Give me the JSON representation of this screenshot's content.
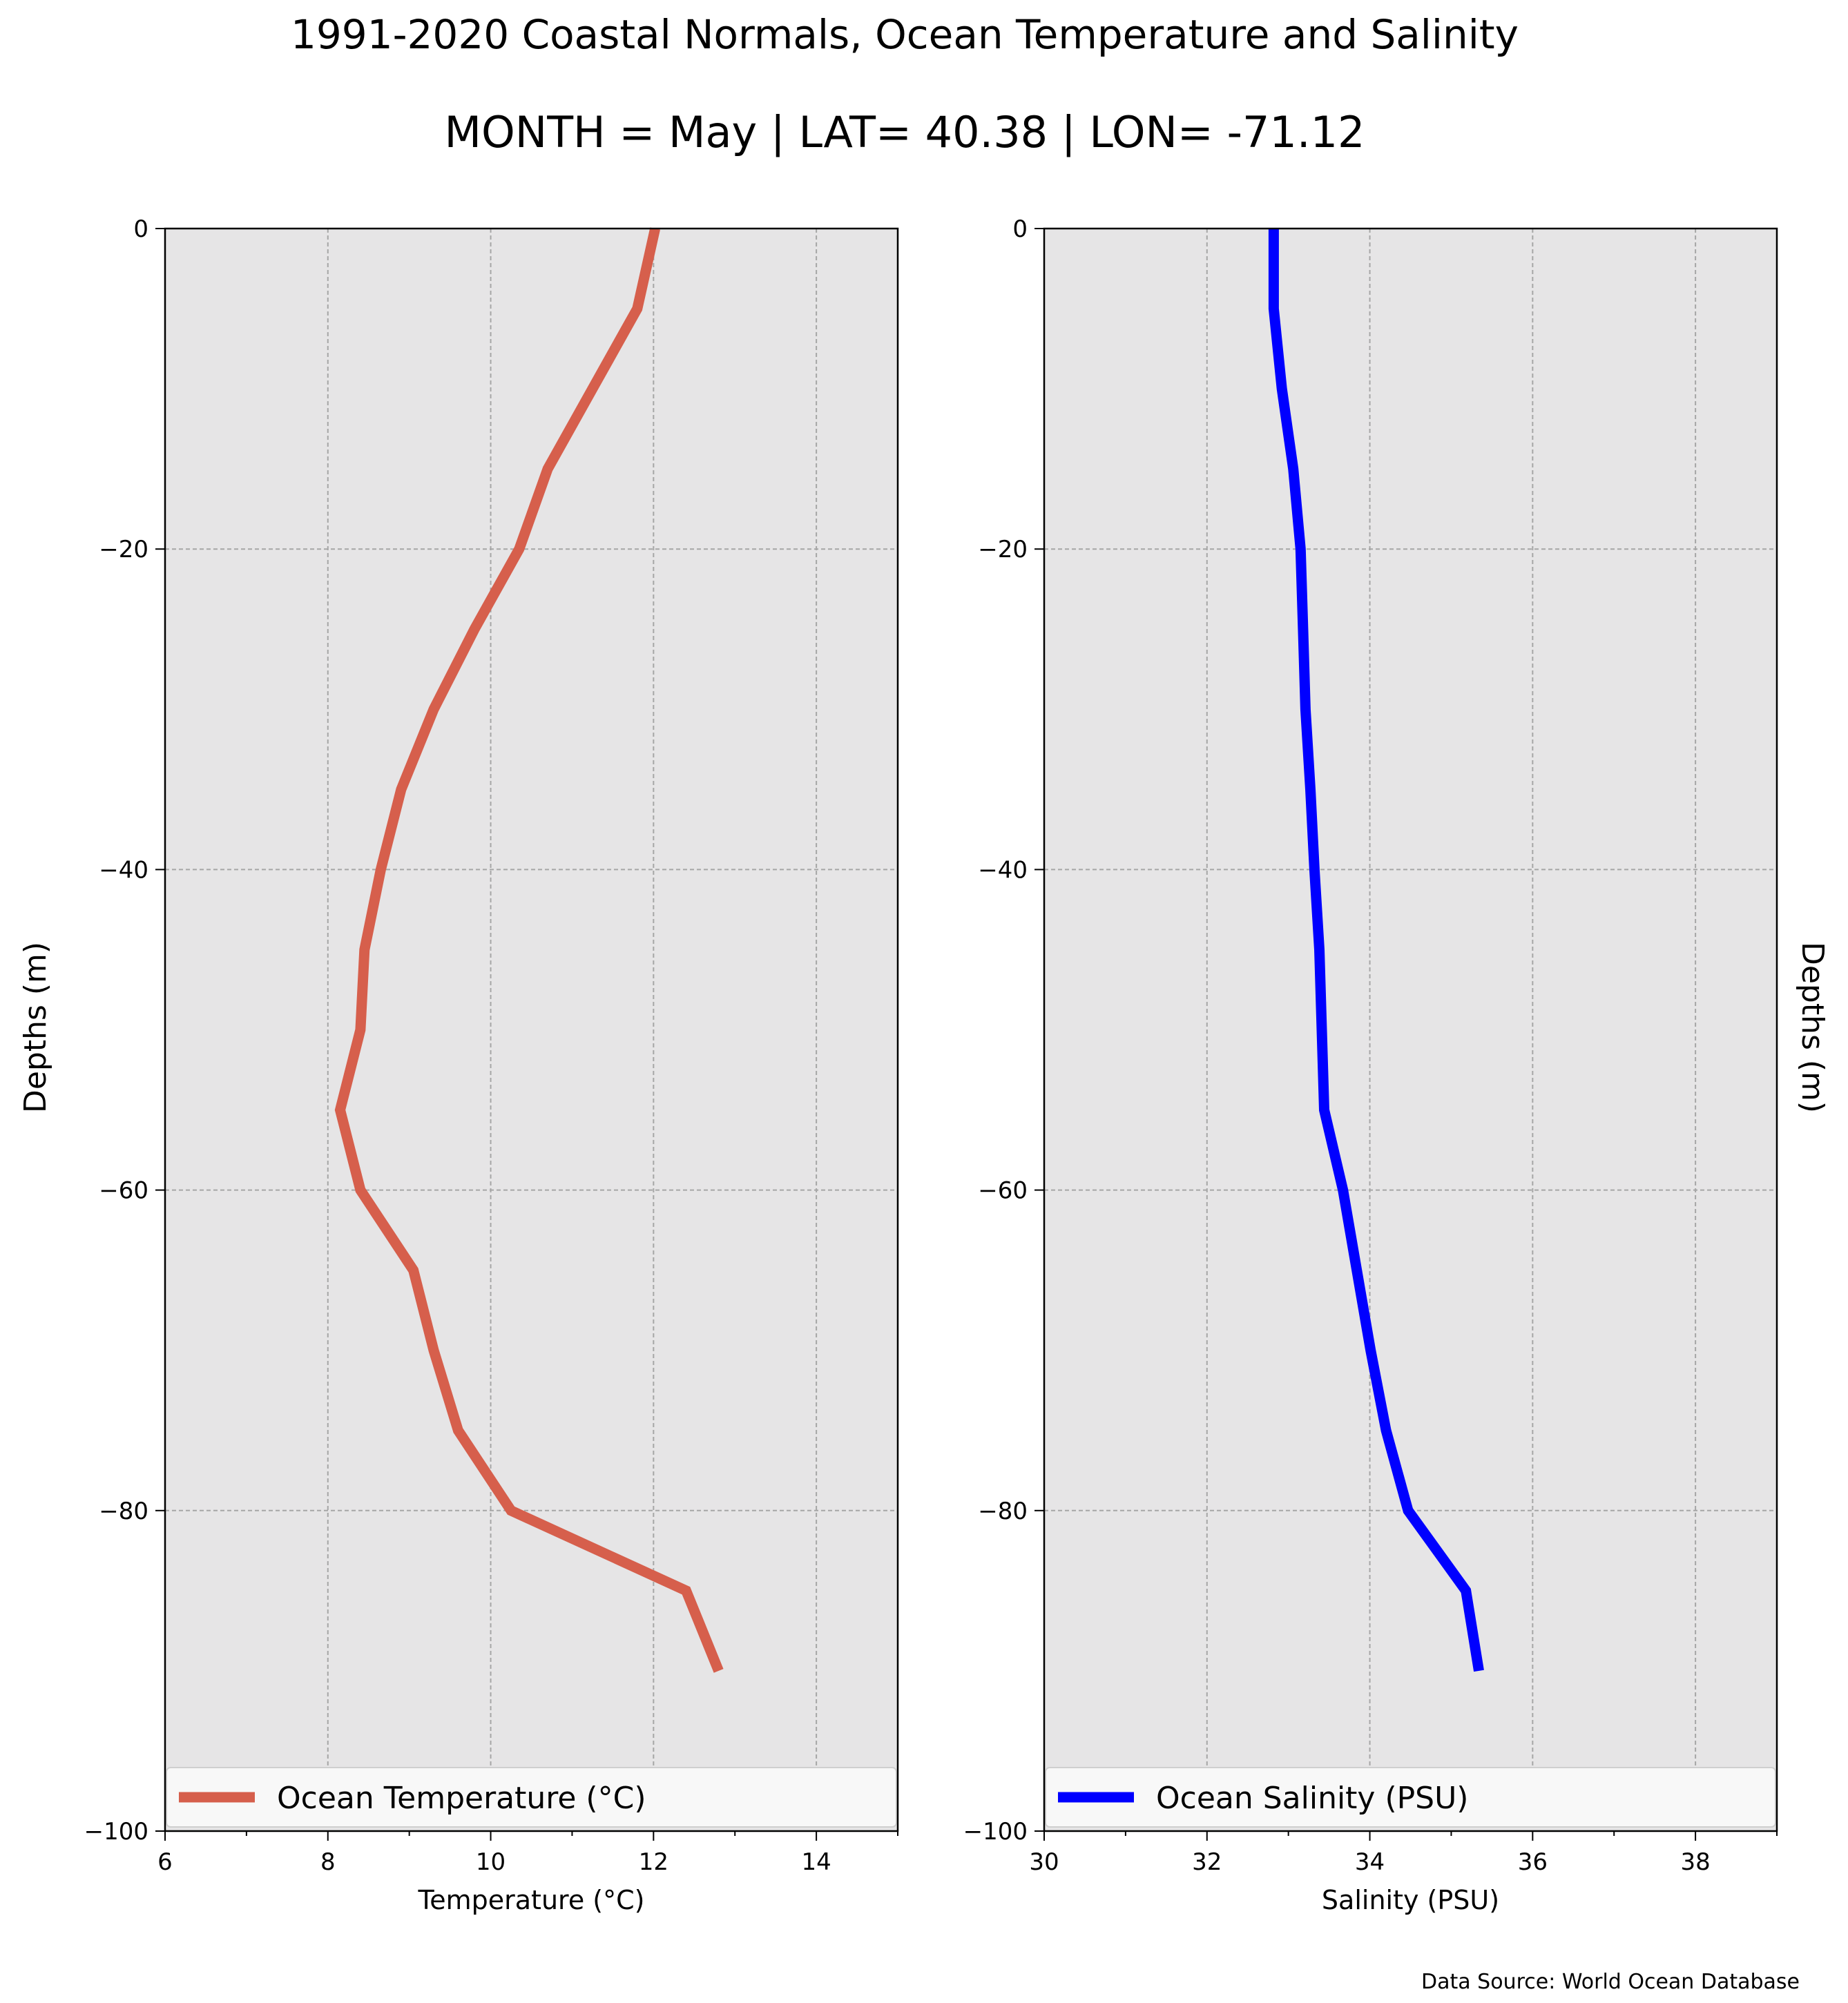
{
  "figure": {
    "title": "1991-2020 Coastal Normals, Ocean Temperature and Salinity",
    "subtitle": "MONTH = May | LAT= 40.38 | LON= -71.12",
    "source_note": "Data Source: World Ocean Database"
  },
  "chart_data": [
    {
      "type": "line",
      "xlabel": "Temperature (°C)",
      "ylabel": "Depths (m)",
      "xlim": [
        6,
        15
      ],
      "ylim": [
        -100,
        0
      ],
      "xticks": [
        6,
        8,
        10,
        12,
        14
      ],
      "xticklabels": [
        "6",
        "8",
        "10",
        "12",
        "14"
      ],
      "yticks": [
        0,
        -20,
        -40,
        -60,
        -80,
        -100
      ],
      "yticklabels": [
        "0",
        "−20",
        "−40",
        "−60",
        "−80",
        "−100"
      ],
      "grid": true,
      "background": "#e6e5e6",
      "legend_position": "bottom",
      "series": [
        {
          "name": "Ocean Temperature (°C)",
          "color": "#d65f4c",
          "x": [
            12.02,
            11.8,
            11.25,
            10.7,
            10.35,
            9.8,
            9.3,
            8.9,
            8.65,
            8.45,
            8.4,
            8.15,
            8.4,
            9.05,
            9.3,
            9.6,
            10.25,
            12.4,
            12.8
          ],
          "y": [
            0,
            -5,
            -10,
            -15,
            -20,
            -25,
            -30,
            -35,
            -40,
            -45,
            -50,
            -55,
            -60,
            -65,
            -70,
            -75,
            -80,
            -85,
            -90
          ]
        }
      ]
    },
    {
      "type": "line",
      "xlabel": "Salinity (PSU)",
      "ylabel": "Depths (m)",
      "xlim": [
        30,
        39
      ],
      "ylim": [
        -100,
        0
      ],
      "xticks": [
        30,
        32,
        34,
        36,
        38
      ],
      "xticklabels": [
        "30",
        "32",
        "34",
        "36",
        "38"
      ],
      "yticks": [
        0,
        -20,
        -40,
        -60,
        -80,
        -100
      ],
      "yticklabels": [
        "0",
        "−20",
        "−40",
        "−60",
        "−80",
        "−100"
      ],
      "grid": true,
      "background": "#e6e5e6",
      "legend_position": "bottom",
      "series": [
        {
          "name": "Ocean Salinity (PSU)",
          "color": "#0000ff",
          "x": [
            32.82,
            32.82,
            32.92,
            33.06,
            33.15,
            33.18,
            33.21,
            33.27,
            33.32,
            33.38,
            33.41,
            33.44,
            33.67,
            33.84,
            34.01,
            34.2,
            34.47,
            35.18,
            35.34
          ],
          "y": [
            0,
            -5,
            -10,
            -15,
            -20,
            -25,
            -30,
            -35,
            -40,
            -45,
            -50,
            -55,
            -60,
            -65,
            -70,
            -75,
            -80,
            -85,
            -90
          ]
        }
      ]
    }
  ]
}
